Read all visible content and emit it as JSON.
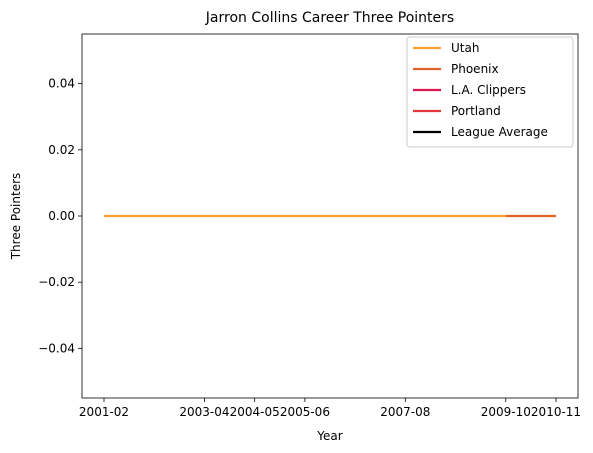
{
  "chart_data": {
    "type": "line",
    "title": "Jarron Collins Career Three Pointers",
    "xlabel": "Year",
    "ylabel": "Three Pointers",
    "x_tick_labels": [
      "2001-02",
      "2003-04",
      "2004-05",
      "2005-06",
      "2007-08",
      "2009-10",
      "2010-11"
    ],
    "ylim": [
      -0.055,
      0.055
    ],
    "y_ticks": [
      -0.04,
      -0.02,
      0.0,
      0.02,
      0.04
    ],
    "y_tick_labels": [
      "−0.04",
      "−0.02",
      "0.00",
      "0.02",
      "0.04"
    ],
    "grid": false,
    "legend_position": "top-right",
    "x_positions": [
      0,
      1,
      2,
      3,
      4,
      5,
      6,
      7,
      8,
      9
    ],
    "x_tick_positions": [
      0,
      2,
      3,
      4,
      6,
      8,
      9
    ],
    "series": [
      {
        "name": "Utah",
        "color": "#f5a02a",
        "x": [
          0,
          1,
          2,
          3,
          4,
          5,
          6,
          7,
          8
        ],
        "values": [
          0,
          0,
          0,
          0,
          0,
          0,
          0,
          0,
          0
        ]
      },
      {
        "name": "Phoenix",
        "color": "#e2622a",
        "x": [
          8,
          9
        ],
        "values": [
          0,
          0
        ]
      },
      {
        "name": "L.A. Clippers",
        "color": "#e0184e",
        "x": [],
        "values": []
      },
      {
        "name": "Portland",
        "color": "#e03a3e",
        "x": [],
        "values": []
      },
      {
        "name": "League Average",
        "color": "#000000",
        "x": [],
        "values": []
      }
    ]
  }
}
